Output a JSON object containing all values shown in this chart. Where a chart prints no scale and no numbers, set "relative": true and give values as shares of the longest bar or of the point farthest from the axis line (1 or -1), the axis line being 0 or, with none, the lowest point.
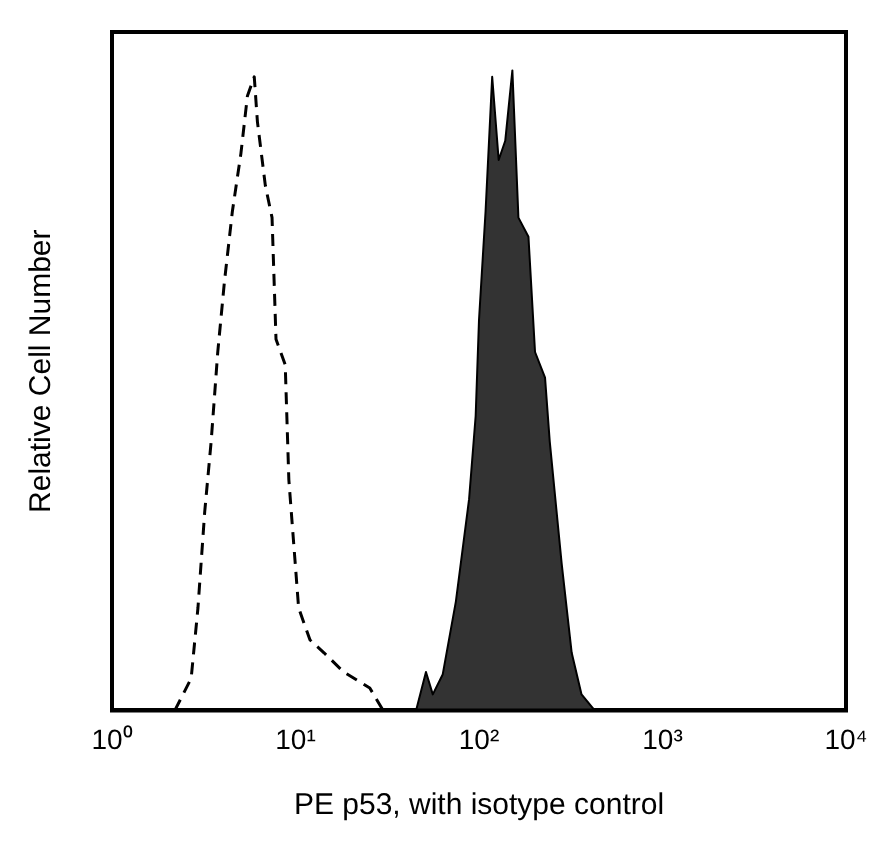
{
  "chart_data": {
    "type": "line",
    "relative": true,
    "xlabel": "PE p53, with isotype control",
    "ylabel": "Relative Cell Number",
    "log": "x",
    "xlim": [
      1,
      10000
    ],
    "xticks": [
      {
        "value": 1,
        "label": "10⁰"
      },
      {
        "value": 10,
        "label": "10¹"
      },
      {
        "value": 100,
        "label": "10²"
      },
      {
        "value": 1000,
        "label": "10³"
      },
      {
        "value": 10000,
        "label": "10⁴"
      }
    ],
    "grid": false,
    "legend": false,
    "marker": "none",
    "series": [
      {
        "type": "line",
        "line_style": "dashed",
        "color": "#000000",
        "x": [
          2.2,
          2.7,
          2.94,
          3.2,
          3.47,
          3.77,
          4.1,
          4.53,
          5.04,
          5.47,
          5.96,
          6.2,
          6.85,
          7.45,
          7.83,
          8.79,
          9.2,
          10.4,
          12.0,
          14.3,
          18.3,
          25.4,
          30
        ],
        "values": [
          0,
          0.05,
          0.16,
          0.31,
          0.42,
          0.56,
          0.67,
          0.78,
          0.87,
          0.96,
          0.99,
          0.92,
          0.82,
          0.77,
          0.58,
          0.54,
          0.36,
          0.16,
          0.11,
          0.09,
          0.06,
          0.035,
          0
        ]
      },
      {
        "type": "area",
        "line_style": "solid",
        "color": "#333333",
        "x": [
          45.4,
          51.4,
          56,
          63.4,
          74.8,
          88.3,
          95.9,
          100,
          108.6,
          118,
          128,
          139,
          152,
          164,
          186,
          202,
          229,
          243,
          282,
          320,
          362,
          427
        ],
        "values": [
          0,
          0.06,
          0.025,
          0.056,
          0.17,
          0.33,
          0.46,
          0.61,
          0.78,
          0.99,
          0.86,
          0.89,
          1.0,
          0.77,
          0.74,
          0.56,
          0.52,
          0.42,
          0.23,
          0.09,
          0.025,
          0
        ]
      }
    ]
  }
}
